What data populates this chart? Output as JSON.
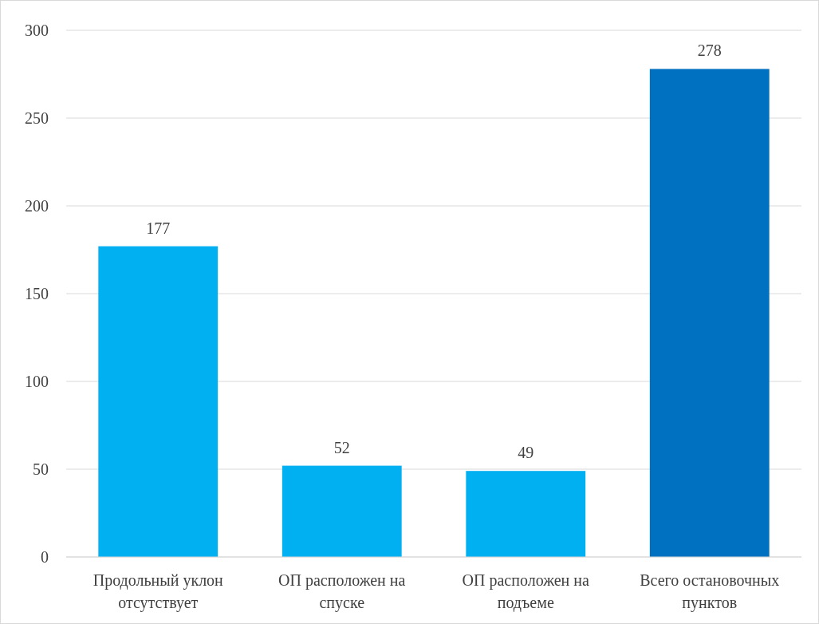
{
  "chart_data": {
    "type": "bar",
    "categories": [
      "Продольный уклон отсутствует",
      "ОП расположен на спуске",
      "ОП расположен на подъеме",
      "Всего остановочных пунктов"
    ],
    "values": [
      177,
      52,
      49,
      278
    ],
    "colors": [
      "#00b0f0",
      "#00b0f0",
      "#00b0f0",
      "#0070c0"
    ],
    "ylim": [
      0,
      300
    ],
    "yticks": [
      0,
      50,
      100,
      150,
      200,
      250,
      300
    ],
    "grid": "y",
    "data_labels": true
  }
}
